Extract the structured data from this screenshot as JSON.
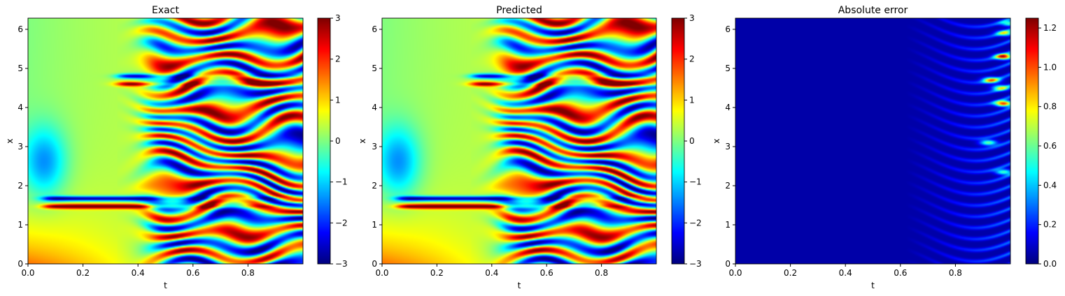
{
  "chart_data": [
    {
      "type": "heatmap",
      "title": "Exact",
      "xlabel": "t",
      "ylabel": "x",
      "xlim": [
        0,
        1
      ],
      "ylim": [
        0,
        6.283
      ],
      "xticks": [
        "0.0",
        "0.2",
        "0.4",
        "0.6",
        "0.8"
      ],
      "yticks": [
        "0",
        "1",
        "2",
        "3",
        "4",
        "5",
        "6"
      ],
      "colorbar": {
        "min": -3,
        "max": 3,
        "ticks": [
          "−3",
          "−2",
          "−1",
          "0",
          "1",
          "2",
          "3"
        ],
        "colormap": "jet"
      },
      "field": "solution"
    },
    {
      "type": "heatmap",
      "title": "Predicted",
      "xlabel": "t",
      "ylabel": "x",
      "xlim": [
        0,
        1
      ],
      "ylim": [
        0,
        6.283
      ],
      "xticks": [
        "0.0",
        "0.2",
        "0.4",
        "0.6",
        "0.8"
      ],
      "yticks": [
        "0",
        "1",
        "2",
        "3",
        "4",
        "5",
        "6"
      ],
      "colorbar": {
        "min": -3,
        "max": 3,
        "ticks": [
          "−3",
          "−2",
          "−1",
          "0",
          "1",
          "2",
          "3"
        ],
        "colormap": "jet"
      },
      "field": "solution"
    },
    {
      "type": "heatmap",
      "title": "Absolute error",
      "xlabel": "t",
      "ylabel": "x",
      "xlim": [
        0,
        1
      ],
      "ylim": [
        0,
        6.283
      ],
      "xticks": [
        "0.0",
        "0.2",
        "0.4",
        "0.6",
        "0.8"
      ],
      "yticks": [
        "0",
        "1",
        "2",
        "3",
        "4",
        "5",
        "6"
      ],
      "colorbar": {
        "min": 0,
        "max": 1.25,
        "ticks": [
          "0.0",
          "0.2",
          "0.4",
          "0.6",
          "0.8",
          "1.0",
          "1.2"
        ],
        "colormap": "jet"
      },
      "field": "error"
    }
  ]
}
